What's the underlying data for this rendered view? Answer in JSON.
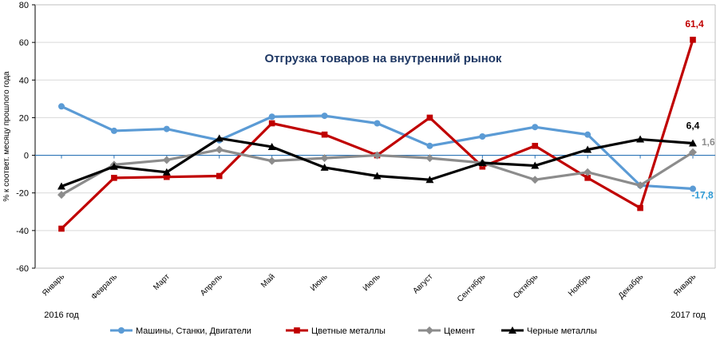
{
  "chart_data": {
    "type": "line",
    "title": "Отгрузка товаров на внутренний рынок",
    "ylabel": "% к соответ. месяцу прошлого года",
    "xlabel": "",
    "ylim": [
      -60,
      80
    ],
    "yticks": [
      "80",
      "60",
      "40",
      "20",
      "0",
      "-20",
      "-40",
      "-60"
    ],
    "categories": [
      "Январь",
      "Февраль",
      "Март",
      "Апрель",
      "Май",
      "Июнь",
      "Июль",
      "Август",
      "Сентябрь",
      "Октябрь",
      "Ноябрь",
      "Декабрь",
      "Январь"
    ],
    "year_labels": [
      "2016 год",
      "2017 год"
    ],
    "grid": "horizontal",
    "legend_position": "bottom",
    "series": [
      {
        "name": "Машины, Станки, Двигатели",
        "color": "#5b9bd5",
        "marker": "circle",
        "values": [
          26,
          13,
          14,
          8,
          20.5,
          21,
          17,
          5,
          10,
          15,
          11,
          -16,
          -17.8
        ],
        "end_label": "-17,8"
      },
      {
        "name": "Цветные металлы",
        "color": "#c00000",
        "marker": "square",
        "values": [
          -39,
          -12,
          -11.5,
          -11,
          17,
          11,
          0,
          20,
          -6,
          5,
          -12,
          -28,
          61.4
        ],
        "end_label": "61,4"
      },
      {
        "name": "Цемент",
        "color": "#8c8c8c",
        "marker": "diamond",
        "values": [
          -21,
          -5,
          -2.5,
          3,
          -3,
          -1.5,
          0,
          -1.5,
          -4,
          -13,
          -9,
          -16,
          1.6
        ],
        "end_label": "1,6"
      },
      {
        "name": "Черные металлы",
        "color": "#000000",
        "marker": "triangle",
        "values": [
          -16.5,
          -6,
          -9,
          9,
          4.5,
          -6.5,
          -11,
          -13,
          -4,
          -5.5,
          3,
          8.5,
          6.4
        ],
        "end_label": "6,4"
      }
    ]
  }
}
